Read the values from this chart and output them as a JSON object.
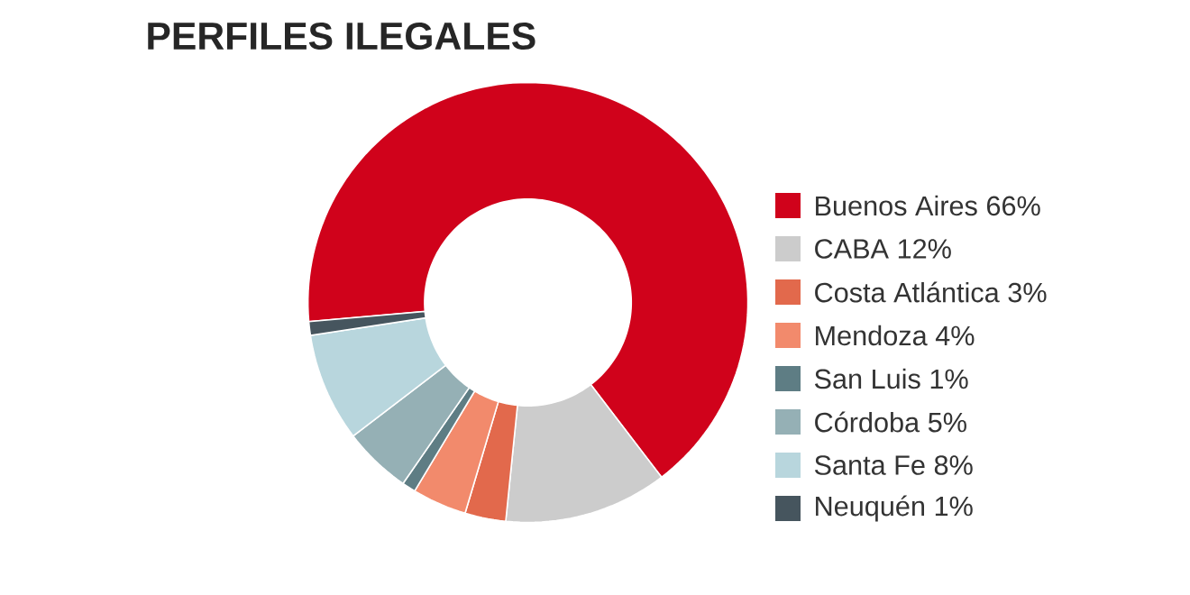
{
  "chart_data": {
    "type": "donut",
    "title": "PERFILES ILEGALES",
    "categories": [
      "Buenos Aires",
      "CABA",
      "Costa Atlántica",
      "Mendoza",
      "San Luis",
      "Córdoba",
      "Santa Fe",
      "Neuquén"
    ],
    "values": [
      66,
      12,
      3,
      4,
      1,
      5,
      8,
      1
    ],
    "value_labels": [
      "66%",
      "12%",
      "3%",
      "4%",
      "1%",
      "5%",
      "8%",
      "1%"
    ],
    "colors": [
      "#d0021b",
      "#cccccc",
      "#e2694c",
      "#f28a6c",
      "#5e7d84",
      "#95b0b5",
      "#b8d6dd",
      "#46555e"
    ],
    "legend": "right"
  }
}
